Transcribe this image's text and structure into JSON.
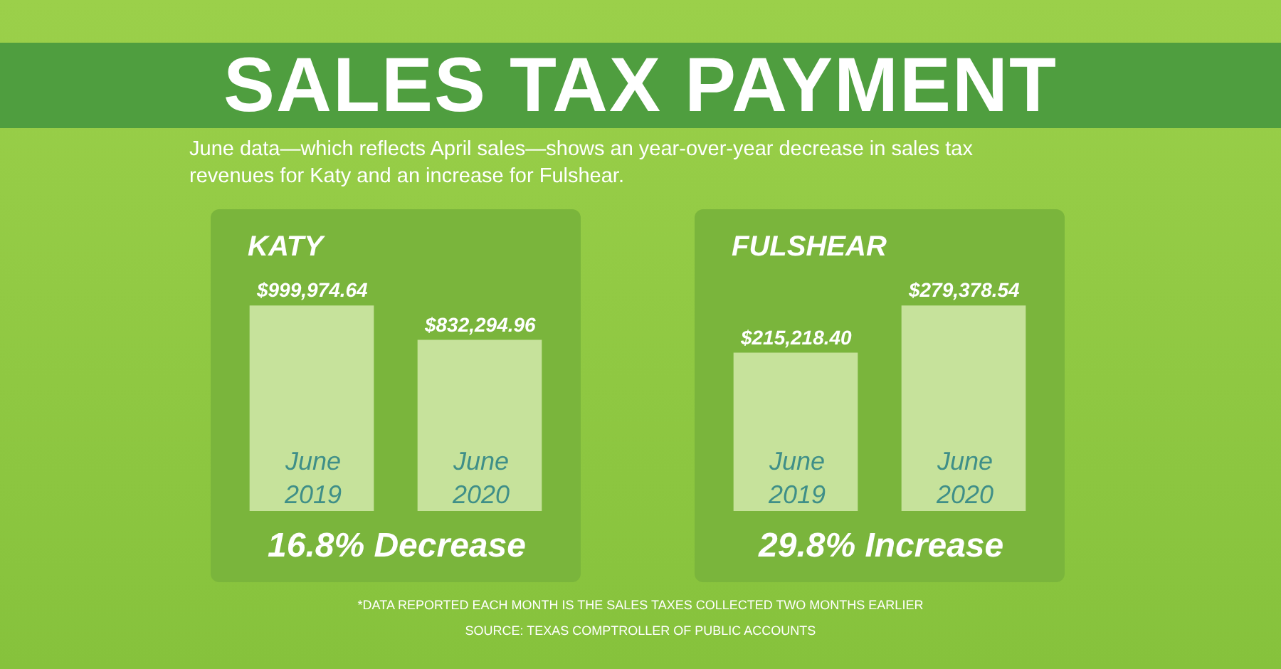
{
  "chart_data": [
    {
      "type": "other",
      "title": "SALES TAX PAYMENT",
      "subtitle": "June data—which reflects April sales—shows an year-over-year decrease in sales tax revenues for Katy and an increase for Fulshear."
    },
    {
      "type": "bar",
      "title": "KATY",
      "categories": [
        "June 2019",
        "June 2020"
      ],
      "values": [
        999974.64,
        832294.96
      ],
      "value_labels": [
        "$999,974.64",
        "$832,294.96"
      ],
      "color": "#c6e29b",
      "annotations": [
        "16.8% Decrease"
      ]
    },
    {
      "type": "bar",
      "title": "FULSHEAR",
      "categories": [
        "June 2019",
        "June 2020"
      ],
      "values": [
        215218.4,
        279378.54
      ],
      "value_labels": [
        "$215,218.40",
        "$279,378.54"
      ],
      "color": "#c6e29b",
      "annotations": [
        "29.8% Increase"
      ]
    },
    {
      "type": "other",
      "annotations": [
        "*DATA REPORTED EACH MONTH IS THE SALES TAXES COLLECTED TWO MONTHS EARLIER",
        "SOURCE: TEXAS COMPTROLLER OF PUBLIC ACCOUNTS"
      ]
    }
  ]
}
